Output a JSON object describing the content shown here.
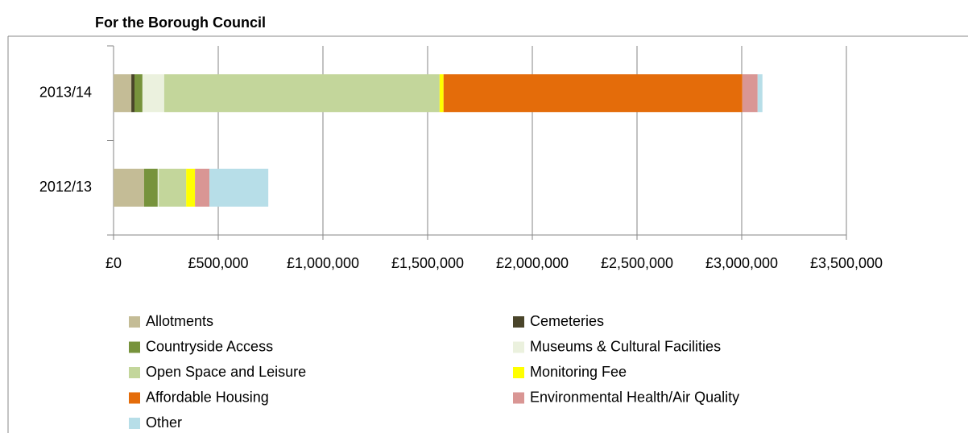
{
  "chart_data": {
    "type": "stacked-bar-horizontal",
    "title": "For the Borough Council",
    "categories": [
      "2013/14",
      "2012/13"
    ],
    "series": [
      {
        "name": "Allotments",
        "color": "#c4bc96",
        "values": [
          85000,
          146000
        ]
      },
      {
        "name": "Cemeteries",
        "color": "#4a452a",
        "values": [
          15000,
          0
        ]
      },
      {
        "name": "Countryside Access",
        "color": "#77933c",
        "values": [
          38000,
          65000
        ]
      },
      {
        "name": "Museums & Cultural Facilities",
        "color": "#ebf1de",
        "values": [
          104000,
          5000
        ]
      },
      {
        "name": "Open Space and Leisure",
        "color": "#c3d69b",
        "values": [
          1315000,
          131000
        ]
      },
      {
        "name": "Monitoring Fee",
        "color": "#ffff00",
        "values": [
          19000,
          42000
        ]
      },
      {
        "name": "Affordable Housing",
        "color": "#e46c0a",
        "values": [
          1427000,
          0
        ]
      },
      {
        "name": "Environmental Health/Air Quality",
        "color": "#d99694",
        "values": [
          73000,
          69000
        ]
      },
      {
        "name": "Other",
        "color": "#b7dee8",
        "values": [
          23000,
          281000
        ]
      }
    ],
    "xlim": [
      0,
      3500000
    ],
    "xticks": [
      {
        "value": 0,
        "label": "£0"
      },
      {
        "value": 500000,
        "label": "£500,000"
      },
      {
        "value": 1000000,
        "label": "£1,000,000"
      },
      {
        "value": 1500000,
        "label": "£1,500,000"
      },
      {
        "value": 2000000,
        "label": "£2,000,000"
      },
      {
        "value": 2500000,
        "label": "£2,500,000"
      },
      {
        "value": 3000000,
        "label": "£3,000,000"
      },
      {
        "value": 3500000,
        "label": "£3,500,000"
      }
    ],
    "grid": true
  }
}
